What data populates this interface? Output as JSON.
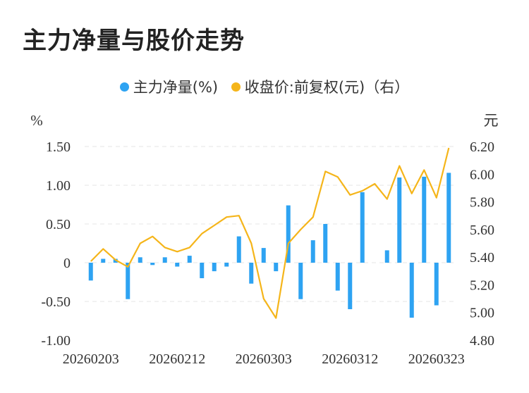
{
  "title": "主力净量与股价走势",
  "colors": {
    "bar": "#2ea3f2",
    "line": "#f5b51a",
    "grid": "#e6e6e6",
    "text": "#333333"
  },
  "chart_data": {
    "type": "bar+line",
    "legend": [
      {
        "label": "主力净量(%)",
        "color": "#2ea3f2"
      },
      {
        "label": "收盘价:前复权(元)（右）",
        "color": "#f5b51a"
      }
    ],
    "legend_position": "top",
    "y_left_unit": "%",
    "y_right_unit": "元",
    "ylim_left": [
      -1.0,
      1.5
    ],
    "ylim_right": [
      4.8,
      6.2
    ],
    "yticks_left": [
      "1.50",
      "1.00",
      "0.50",
      "0",
      "-0.50",
      "-1.00"
    ],
    "yticks_left_values": [
      1.5,
      1.0,
      0.5,
      0,
      -0.5,
      -1.0
    ],
    "yticks_right": [
      "6.20",
      "6.00",
      "5.80",
      "5.60",
      "5.40",
      "5.20",
      "5.00",
      "4.80"
    ],
    "yticks_right_values": [
      6.2,
      6.0,
      5.8,
      5.6,
      5.4,
      5.2,
      5.0,
      4.8
    ],
    "xtick_labels": [
      "20260203",
      "20260212",
      "20260303",
      "20260312",
      "20260323"
    ],
    "xtick_indices": [
      0,
      7,
      14,
      21,
      28
    ],
    "grid": true,
    "series": [
      {
        "name": "主力净量(%)",
        "kind": "bar",
        "axis": "left",
        "values": [
          -0.23,
          0.05,
          0.05,
          -0.47,
          0.07,
          -0.03,
          0.07,
          -0.05,
          0.09,
          -0.2,
          -0.11,
          -0.05,
          0.34,
          -0.27,
          0.19,
          -0.11,
          0.74,
          -0.47,
          0.29,
          0.5,
          -0.36,
          -0.6,
          0.91,
          0.0,
          0.16,
          1.1,
          -0.71,
          1.11,
          -0.55,
          1.16
        ]
      },
      {
        "name": "收盘价:前复权(元)（右）",
        "kind": "line",
        "axis": "right",
        "values": [
          5.37,
          5.46,
          5.38,
          5.33,
          5.5,
          5.55,
          5.47,
          5.44,
          5.47,
          5.57,
          5.63,
          5.69,
          5.7,
          5.5,
          5.1,
          4.96,
          5.5,
          5.6,
          5.69,
          6.02,
          5.98,
          5.85,
          5.88,
          5.93,
          5.82,
          6.06,
          5.86,
          6.03,
          5.83,
          6.19
        ]
      }
    ]
  }
}
